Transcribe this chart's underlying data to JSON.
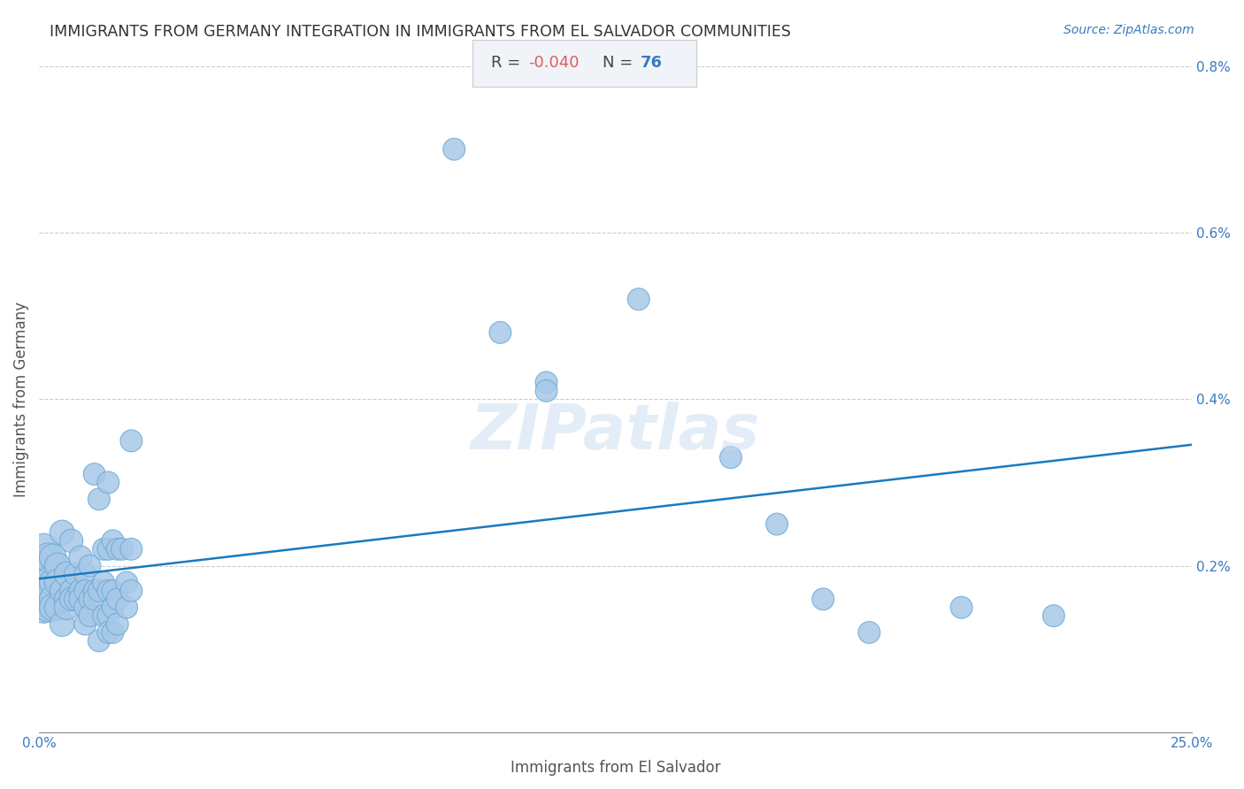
{
  "title": "IMMIGRANTS FROM GERMANY INTEGRATION IN IMMIGRANTS FROM EL SALVADOR COMMUNITIES",
  "source": "Source: ZipAtlas.com",
  "xlabel": "Immigrants from El Salvador",
  "ylabel": "Immigrants from Germany",
  "R": -0.04,
  "N": 76,
  "xlim": [
    0.0,
    0.25
  ],
  "ylim": [
    0.0,
    0.008
  ],
  "xticks": [
    0.0,
    0.05,
    0.1,
    0.15,
    0.2,
    0.25
  ],
  "xtick_labels": [
    "0.0%",
    "",
    "",
    "",
    "",
    "25.0%"
  ],
  "yticks": [
    0.0,
    0.002,
    0.004,
    0.006,
    0.008
  ],
  "ytick_labels": [
    "",
    "0.2%",
    "0.4%",
    "0.6%",
    "0.8%"
  ],
  "scatter_color": "#a8c8e8",
  "scatter_edge_color": "#6aaad4",
  "trend_color": "#1a7abf",
  "background_color": "#ffffff",
  "grid_color": "#cccccc",
  "title_color": "#333333",
  "label_color": "#555555",
  "axis_color": "#888888",
  "annotation_box_color": "#f0f4f8",
  "annotation_box_edge": "#cccccc",
  "R_color": "#e05c5c",
  "N_color": "#3a7abf",
  "watermark_color": "#c8ddf0",
  "points": [
    [
      0.001,
      0.0022
    ],
    [
      0.001,
      0.0019
    ],
    [
      0.001,
      0.0018
    ],
    [
      0.001,
      0.0016
    ],
    [
      0.001,
      0.0015
    ],
    [
      0.002,
      0.0021
    ],
    [
      0.002,
      0.0018
    ],
    [
      0.002,
      0.0017
    ],
    [
      0.002,
      0.0016
    ],
    [
      0.002,
      0.0015
    ],
    [
      0.003,
      0.0021
    ],
    [
      0.003,
      0.0018
    ],
    [
      0.003,
      0.0016
    ],
    [
      0.003,
      0.0015
    ],
    [
      0.004,
      0.002
    ],
    [
      0.004,
      0.0018
    ],
    [
      0.004,
      0.0015
    ],
    [
      0.005,
      0.0024
    ],
    [
      0.005,
      0.0017
    ],
    [
      0.005,
      0.0013
    ],
    [
      0.006,
      0.0019
    ],
    [
      0.006,
      0.0016
    ],
    [
      0.006,
      0.0015
    ],
    [
      0.007,
      0.0023
    ],
    [
      0.007,
      0.0017
    ],
    [
      0.007,
      0.0016
    ],
    [
      0.008,
      0.0019
    ],
    [
      0.008,
      0.0016
    ],
    [
      0.009,
      0.0021
    ],
    [
      0.009,
      0.0017
    ],
    [
      0.009,
      0.0016
    ],
    [
      0.01,
      0.0019
    ],
    [
      0.01,
      0.0017
    ],
    [
      0.01,
      0.0015
    ],
    [
      0.01,
      0.0013
    ],
    [
      0.011,
      0.002
    ],
    [
      0.011,
      0.0016
    ],
    [
      0.011,
      0.0014
    ],
    [
      0.012,
      0.0031
    ],
    [
      0.012,
      0.0017
    ],
    [
      0.012,
      0.0016
    ],
    [
      0.013,
      0.0028
    ],
    [
      0.013,
      0.0017
    ],
    [
      0.013,
      0.0011
    ],
    [
      0.014,
      0.0022
    ],
    [
      0.014,
      0.0018
    ],
    [
      0.014,
      0.0014
    ],
    [
      0.015,
      0.003
    ],
    [
      0.015,
      0.0022
    ],
    [
      0.015,
      0.0017
    ],
    [
      0.015,
      0.0014
    ],
    [
      0.015,
      0.0012
    ],
    [
      0.016,
      0.0023
    ],
    [
      0.016,
      0.0017
    ],
    [
      0.016,
      0.0015
    ],
    [
      0.016,
      0.0012
    ],
    [
      0.017,
      0.0022
    ],
    [
      0.017,
      0.0016
    ],
    [
      0.017,
      0.0013
    ],
    [
      0.018,
      0.0022
    ],
    [
      0.019,
      0.0018
    ],
    [
      0.019,
      0.0015
    ],
    [
      0.02,
      0.0035
    ],
    [
      0.02,
      0.0022
    ],
    [
      0.02,
      0.0017
    ],
    [
      0.09,
      0.007
    ],
    [
      0.1,
      0.0048
    ],
    [
      0.11,
      0.0042
    ],
    [
      0.11,
      0.0041
    ],
    [
      0.13,
      0.0052
    ],
    [
      0.15,
      0.0033
    ],
    [
      0.16,
      0.0025
    ],
    [
      0.17,
      0.0016
    ],
    [
      0.18,
      0.0012
    ],
    [
      0.2,
      0.0015
    ],
    [
      0.22,
      0.0014
    ]
  ],
  "bubble_sizes": [
    80,
    80,
    80,
    80,
    80,
    70,
    70,
    70,
    70,
    70,
    60,
    60,
    60,
    60,
    55,
    55,
    55,
    50,
    50,
    50,
    50,
    50,
    50,
    45,
    45,
    45,
    45,
    45,
    45,
    45,
    45,
    40,
    40,
    40,
    40,
    40,
    40,
    40,
    40,
    40,
    40,
    40,
    40,
    40,
    40,
    40,
    40,
    40,
    40,
    40,
    40,
    40,
    40,
    40,
    40,
    40,
    40,
    40,
    40,
    40,
    40,
    40,
    40,
    40,
    40,
    40,
    40,
    40,
    40,
    40,
    40,
    40,
    40,
    40,
    40,
    40
  ]
}
